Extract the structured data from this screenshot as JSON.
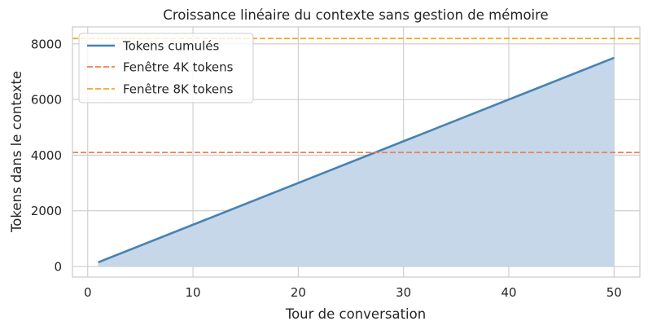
{
  "chart_data": {
    "type": "area",
    "title": "Croissance linéaire du contexte sans gestion de mémoire",
    "xlabel": "Tour de conversation",
    "ylabel": "Tokens dans le contexte",
    "xlim": [
      -1.45,
      52.45
    ],
    "ylim": [
      -380,
      8610
    ],
    "xticks": [
      0,
      10,
      20,
      30,
      40,
      50
    ],
    "yticks": [
      0,
      2000,
      4000,
      6000,
      8000
    ],
    "grid": true,
    "legend_position": "top-left",
    "series": [
      {
        "name": "Tokens cumulés",
        "type": "line-with-fill",
        "color": "#4682b4",
        "fill_color": "#c5d7e8",
        "x": [
          1,
          50
        ],
        "y": [
          150,
          7500
        ]
      }
    ],
    "reference_lines": [
      {
        "name": "Fenêtre 4K tokens",
        "y": 4096,
        "color": "#f07f52",
        "style": "dashed"
      },
      {
        "name": "Fenêtre 8K tokens",
        "y": 8192,
        "color": "#f2a81d",
        "style": "dashed"
      }
    ]
  }
}
